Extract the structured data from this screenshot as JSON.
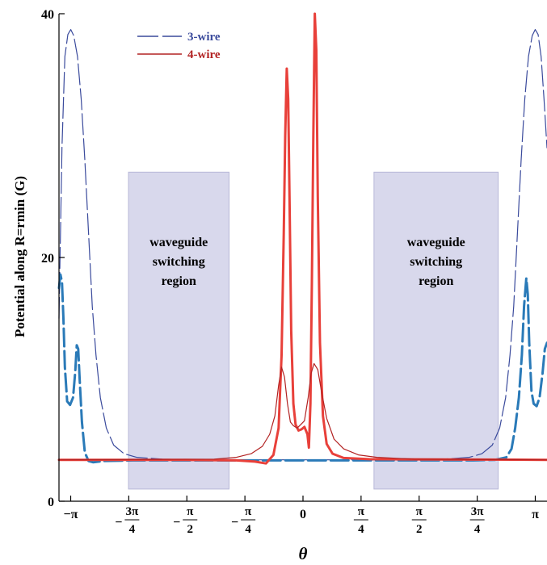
{
  "chart_data": {
    "type": "line",
    "xlabel": "θ",
    "ylabel": "Potential along R=rmin (G)",
    "xlim": [
      -3.3,
      3.3
    ],
    "ylim": [
      0,
      40
    ],
    "y_ticks": [
      {
        "value": 0,
        "label": "0"
      },
      {
        "value": 20,
        "label": "20"
      },
      {
        "value": 40,
        "label": "40"
      }
    ],
    "x_ticks": [
      {
        "value": -3.1416,
        "label": "−π",
        "kind": "simple"
      },
      {
        "value": -2.3562,
        "sign": "−",
        "num": "3π",
        "den": "4",
        "kind": "frac"
      },
      {
        "value": -1.5708,
        "sign": "−",
        "num": "π",
        "den": "2",
        "kind": "frac"
      },
      {
        "value": -0.7854,
        "sign": "−",
        "num": "π",
        "den": "4",
        "kind": "frac"
      },
      {
        "value": 0,
        "label": "0",
        "kind": "simple"
      },
      {
        "value": 0.7854,
        "sign": "",
        "num": "π",
        "den": "4",
        "kind": "frac"
      },
      {
        "value": 1.5708,
        "sign": "",
        "num": "π",
        "den": "2",
        "kind": "frac"
      },
      {
        "value": 2.3562,
        "sign": "",
        "num": "3π",
        "den": "4",
        "kind": "frac"
      },
      {
        "value": 3.1416,
        "label": "π",
        "kind": "simple"
      }
    ],
    "legend": {
      "placement": "top-left",
      "entries": [
        {
          "name": "3-wire",
          "color": "#3a4a9c",
          "style": "dashed"
        },
        {
          "name": "4-wire",
          "color": "#b22222",
          "style": "solid"
        }
      ]
    },
    "regions": [
      {
        "x0": -2.36,
        "x1": -1.0,
        "y0": 1.0,
        "y1": 27.0,
        "lines": [
          "waveguide",
          "switching",
          "region"
        ],
        "color": "#d8d8ec"
      },
      {
        "x0": 0.96,
        "x1": 2.64,
        "y0": 1.0,
        "y1": 27.0,
        "lines": [
          "waveguide",
          "switching",
          "region"
        ],
        "color": "#d8d8ec"
      }
    ],
    "series": [
      {
        "name": "3-wire",
        "color": "#3a4a9c",
        "style": "dashed",
        "width": 1.2,
        "points": [
          [
            -3.3,
            15
          ],
          [
            -3.26,
            29
          ],
          [
            -3.22,
            36.5
          ],
          [
            -3.18,
            38.3
          ],
          [
            -3.14,
            38.7
          ],
          [
            -3.1,
            38.2
          ],
          [
            -3.05,
            36.5
          ],
          [
            -3.0,
            33
          ],
          [
            -2.95,
            28
          ],
          [
            -2.9,
            22
          ],
          [
            -2.85,
            16
          ],
          [
            -2.8,
            12
          ],
          [
            -2.74,
            8.5
          ],
          [
            -2.66,
            6
          ],
          [
            -2.56,
            4.6
          ],
          [
            -2.42,
            3.9
          ],
          [
            -2.25,
            3.6
          ],
          [
            -1.9,
            3.45
          ],
          [
            -1.4,
            3.4
          ],
          [
            0,
            3.4
          ],
          [
            1.4,
            3.4
          ],
          [
            1.9,
            3.45
          ],
          [
            2.25,
            3.6
          ],
          [
            2.42,
            3.9
          ],
          [
            2.56,
            4.6
          ],
          [
            2.66,
            6
          ],
          [
            2.74,
            8.5
          ],
          [
            2.8,
            12
          ],
          [
            2.85,
            16
          ],
          [
            2.9,
            22
          ],
          [
            2.95,
            28
          ],
          [
            3.0,
            33
          ],
          [
            3.05,
            36.5
          ],
          [
            3.1,
            38.2
          ],
          [
            3.14,
            38.7
          ],
          [
            3.18,
            38.3
          ],
          [
            3.22,
            36.5
          ],
          [
            3.26,
            33
          ],
          [
            3.3,
            29
          ]
        ]
      },
      {
        "name": "3-wire-thick",
        "color": "#2a7ab8",
        "style": "dashed",
        "width": 3,
        "points": [
          [
            -3.3,
            17.5
          ],
          [
            -3.28,
            18.6
          ],
          [
            -3.26,
            18
          ],
          [
            -3.24,
            15
          ],
          [
            -3.22,
            11
          ],
          [
            -3.19,
            8.2
          ],
          [
            -3.15,
            7.9
          ],
          [
            -3.11,
            8.5
          ],
          [
            -3.08,
            10.6
          ],
          [
            -3.06,
            12.8
          ],
          [
            -3.04,
            12.5
          ],
          [
            -3.02,
            10
          ],
          [
            -2.99,
            6.5
          ],
          [
            -2.95,
            4.0
          ],
          [
            -2.9,
            3.3
          ],
          [
            -2.84,
            3.2
          ],
          [
            -2.7,
            3.3
          ],
          [
            -2.3,
            3.35
          ],
          [
            -1.2,
            3.35
          ],
          [
            0,
            3.35
          ],
          [
            1.2,
            3.35
          ],
          [
            2.3,
            3.35
          ],
          [
            2.6,
            3.4
          ],
          [
            2.75,
            3.6
          ],
          [
            2.82,
            4.3
          ],
          [
            2.87,
            6
          ],
          [
            2.92,
            8.5
          ],
          [
            2.96,
            12
          ],
          [
            2.99,
            16
          ],
          [
            3.02,
            18.3
          ],
          [
            3.04,
            17
          ],
          [
            3.06,
            13
          ],
          [
            3.09,
            9
          ],
          [
            3.12,
            8.0
          ],
          [
            3.16,
            7.8
          ],
          [
            3.2,
            8.5
          ],
          [
            3.24,
            10.5
          ],
          [
            3.27,
            12.5
          ],
          [
            3.3,
            13
          ]
        ]
      },
      {
        "name": "4-wire-thick",
        "color": "#e8403a",
        "style": "solid",
        "width": 3,
        "points": [
          [
            -3.3,
            3.4
          ],
          [
            -1.6,
            3.4
          ],
          [
            -0.9,
            3.35
          ],
          [
            -0.65,
            3.25
          ],
          [
            -0.5,
            3.1
          ],
          [
            -0.4,
            3.8
          ],
          [
            -0.33,
            6
          ],
          [
            -0.29,
            12
          ],
          [
            -0.26,
            22
          ],
          [
            -0.24,
            30
          ],
          [
            -0.22,
            35.5
          ],
          [
            -0.2,
            33
          ],
          [
            -0.18,
            24
          ],
          [
            -0.16,
            14
          ],
          [
            -0.13,
            8
          ],
          [
            -0.1,
            6.3
          ],
          [
            -0.06,
            5.8
          ],
          [
            -0.02,
            5.9
          ],
          [
            0.02,
            6.1
          ],
          [
            0.06,
            5.5
          ],
          [
            0.08,
            4.4
          ],
          [
            0.1,
            8
          ],
          [
            0.12,
            18
          ],
          [
            0.14,
            30
          ],
          [
            0.16,
            40
          ],
          [
            0.18,
            37
          ],
          [
            0.2,
            25
          ],
          [
            0.23,
            13
          ],
          [
            0.27,
            7
          ],
          [
            0.32,
            4.7
          ],
          [
            0.4,
            3.9
          ],
          [
            0.55,
            3.55
          ],
          [
            0.9,
            3.45
          ],
          [
            3.3,
            3.4
          ]
        ]
      },
      {
        "name": "4-wire-thin",
        "color": "#b22222",
        "style": "solid",
        "width": 1.2,
        "points": [
          [
            -3.3,
            3.4
          ],
          [
            -1.2,
            3.45
          ],
          [
            -0.9,
            3.6
          ],
          [
            -0.7,
            3.9
          ],
          [
            -0.55,
            4.5
          ],
          [
            -0.45,
            5.5
          ],
          [
            -0.38,
            7
          ],
          [
            -0.33,
            9.5
          ],
          [
            -0.29,
            11
          ],
          [
            -0.25,
            10.2
          ],
          [
            -0.21,
            8
          ],
          [
            -0.17,
            6.5
          ],
          [
            -0.13,
            6.2
          ],
          [
            -0.08,
            6.0
          ],
          [
            -0.03,
            6.3
          ],
          [
            0.02,
            6.6
          ],
          [
            0.07,
            8.5
          ],
          [
            0.11,
            10.5
          ],
          [
            0.15,
            11.3
          ],
          [
            0.2,
            10.8
          ],
          [
            0.25,
            9
          ],
          [
            0.32,
            6.8
          ],
          [
            0.42,
            5.1
          ],
          [
            0.55,
            4.3
          ],
          [
            0.75,
            3.8
          ],
          [
            1.0,
            3.6
          ],
          [
            1.5,
            3.45
          ],
          [
            3.3,
            3.4
          ]
        ]
      }
    ]
  }
}
